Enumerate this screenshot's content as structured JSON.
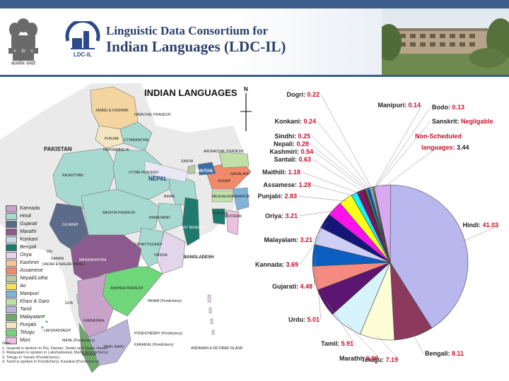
{
  "header": {
    "title_line1": "Linguistic Data Consortium for",
    "title_line2": "Indian Languages (LDC-IL)",
    "logo_text": "LDC-IL",
    "emblem_caption": "सत्यमेव जयते"
  },
  "map": {
    "title": "INDIAN LANGUAGES",
    "north": "N",
    "legend": [
      {
        "name": "Kannada",
        "color": "#c9a2c9"
      },
      {
        "name": "Hindi",
        "color": "#a6d9d0"
      },
      {
        "name": "Gujarati",
        "color": "#5d6b8a"
      },
      {
        "name": "Marathi",
        "color": "#8c5a8c"
      },
      {
        "name": "Konkani",
        "color": "#c5d9e8"
      },
      {
        "name": "Bengali",
        "color": "#1f7a6e"
      },
      {
        "name": "Oriya",
        "color": "#e3d5ea"
      },
      {
        "name": "Kashmiri",
        "color": "#f4c49a"
      },
      {
        "name": "Assamese",
        "color": "#f08a6a"
      },
      {
        "name": "Nepali/Lotha",
        "color": "#b7c9a0"
      },
      {
        "name": "Ao",
        "color": "#f7e05a"
      },
      {
        "name": "Manipuri",
        "color": "#7fb3d9"
      },
      {
        "name": "Khasi & Garo",
        "color": "#c0e0a8"
      },
      {
        "name": "Tamil",
        "color": "#b9b3d8"
      },
      {
        "name": "Malayalam",
        "color": "#6fa86a"
      },
      {
        "name": "Punjabi",
        "color": "#f3e6c0"
      },
      {
        "name": "Telugu",
        "color": "#6fd67a"
      },
      {
        "name": "Mizo",
        "color": "#ecc1e0"
      }
    ],
    "labels": {
      "pakistan": "PAKISTAN",
      "jk": "JAMMU & KASHMIR",
      "hp": "HIMACHAL PRADESH",
      "punjab": "PUNJAB",
      "uttaranchal": "UTTARANCHAL",
      "haryana": "HARYANA",
      "delhi": "DELHI",
      "rajasthan": "RAJASTHAN",
      "up": "UTTAR PRADESH",
      "nepal": "NEPAL",
      "sikkim": "SIKKIM",
      "bhutan": "BHUTAN",
      "arunachal": "ARUNACHAL PRADESH",
      "assam": "ASSAM",
      "nagaland": "NAGALAND",
      "meghalaya": "MEGHALAYA",
      "manipur": "MANIPUR",
      "bihar": "BIHAR",
      "tripura": "TRIPURA",
      "mizoram": "MIZORAM",
      "gujarat": "GUJARAT",
      "mp": "MADHYA PRADESH",
      "jharkhand": "JHARKHAND",
      "westbengal": "WEST BENGAL",
      "chhattisgarh": "CHHATTISGARH",
      "bangladesh": "BANGLADESH",
      "orissa": "ORISSA",
      "diu": "DIU",
      "daman": "DAMAN",
      "dnh": "DADAR & NAGAR HAVELI",
      "maharashtra": "MAHARASHTRA",
      "ap": "ANDHRA PRADESH",
      "goa": "GOA",
      "yanam": "YANAM (Pondicherry)",
      "karnataka": "KARNATAKA",
      "lakshadweep": "LAKSHADWEEP",
      "mahe": "MAHE (Pondicherry)",
      "kerala": "KERALA",
      "tamilnadu": "TAMIL NADU",
      "pondicherry": "PONDICHERRY (Pondicherry)",
      "karaikal": "KARAIKAL (Pondicherry)",
      "andaman": "ANDAMAN & NICOBAR ISLAND"
    },
    "notes": [
      "Note",
      "1. Gujarati is spoken in Diu, Daman, Dadar and Nagar Haveli",
      "2. Malayalam is spoken in Lakshadweep, Mahe (Pondicherry)",
      "3. Telugu in Yanam (Pondicherry)",
      "4. Tamil is spoken in Pondicherry, Karaikal (Pondicherry)"
    ]
  },
  "chart_data": {
    "type": "pie",
    "title": "",
    "slices": [
      {
        "label": "Hindi",
        "value": 41.03,
        "color": "#b8b8ee"
      },
      {
        "label": "Bengali",
        "value": 8.11,
        "color": "#8b3a5e"
      },
      {
        "label": "Telugu",
        "value": 7.19,
        "color": "#fdfdd6"
      },
      {
        "label": "Marathi",
        "value": 6.99,
        "color": "#d8f4fb"
      },
      {
        "label": "Tamil",
        "value": 5.91,
        "color": "#5c1570"
      },
      {
        "label": "Urdu",
        "value": 5.01,
        "color": "#f58a80"
      },
      {
        "label": "Gujarati",
        "value": 4.48,
        "color": "#0a5fc0"
      },
      {
        "label": "Kannada",
        "value": 3.69,
        "color": "#cfcef6"
      },
      {
        "label": "Malayalam",
        "value": 3.21,
        "color": "#15167a"
      },
      {
        "label": "Oriya",
        "value": 3.21,
        "color": "#ff12ee"
      },
      {
        "label": "Punjabi",
        "value": 2.83,
        "color": "#ffff1a"
      },
      {
        "label": "Assamese",
        "value": 1.28,
        "color": "#18f4f8"
      },
      {
        "label": "Maithili",
        "value": 1.18,
        "color": "#7a1470"
      },
      {
        "label": "Santali",
        "value": 0.63,
        "color": "#7a1418"
      },
      {
        "label": "Kashmiri",
        "value": 0.54,
        "color": "#148a8a"
      },
      {
        "label": "Nepali",
        "value": 0.28,
        "color": "#0d14e6"
      },
      {
        "label": "Sindhi",
        "value": 0.25,
        "color": "#10c8f0"
      },
      {
        "label": "Konkani",
        "value": 0.24,
        "color": "#c8f4f8"
      },
      {
        "label": "Dogri",
        "value": 0.22,
        "color": "#d8f8d0"
      },
      {
        "label": "Manipuri",
        "value": 0.14,
        "color": "#f8f8a0"
      },
      {
        "label": "Bodo",
        "value": 0.13,
        "color": "#a0c0f0"
      },
      {
        "label": "Sanskrit",
        "value": 0,
        "value_text": "Negligable",
        "color": "#f0a0c0"
      },
      {
        "label": "Non-Scheduled languages",
        "value": 3.44,
        "color": "#d8a8f0"
      }
    ]
  }
}
